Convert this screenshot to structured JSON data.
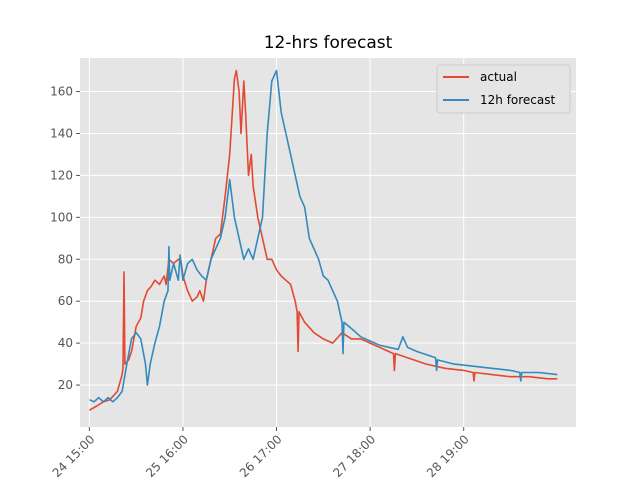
{
  "chart_data": {
    "type": "line",
    "title": "12-hrs forecast",
    "xlabel": "",
    "ylabel": "",
    "ylim": [
      0,
      176
    ],
    "yticks": [
      20,
      40,
      60,
      80,
      100,
      120,
      140,
      160
    ],
    "xlim": [
      -0.1,
      5.2
    ],
    "xtick_values": [
      0,
      1,
      2,
      3,
      4
    ],
    "xtick_labels": [
      "24 15:00",
      "25 16:00",
      "26 17:00",
      "27 18:00",
      "28 19:00"
    ],
    "grid": true,
    "legend_position": "top-right",
    "colors": {
      "actual": "#e24a33",
      "forecast": "#348abd",
      "background": "#e5e5e5",
      "grid": "#ffffff"
    },
    "series": [
      {
        "name": "actual",
        "color": "#e24a33",
        "points": [
          [
            0,
            8
          ],
          [
            0.08,
            10
          ],
          [
            0.15,
            12
          ],
          [
            0.22,
            13
          ],
          [
            0.3,
            17
          ],
          [
            0.35,
            25
          ],
          [
            0.36,
            28
          ],
          [
            0.37,
            74
          ],
          [
            0.38,
            30
          ],
          [
            0.42,
            32
          ],
          [
            0.45,
            36
          ],
          [
            0.5,
            48
          ],
          [
            0.55,
            52
          ],
          [
            0.58,
            60
          ],
          [
            0.62,
            65
          ],
          [
            0.66,
            67
          ],
          [
            0.7,
            70
          ],
          [
            0.75,
            68
          ],
          [
            0.8,
            72
          ],
          [
            0.82,
            68
          ],
          [
            0.85,
            80
          ],
          [
            0.9,
            78
          ],
          [
            0.95,
            80
          ],
          [
            0.98,
            79
          ],
          [
            1.0,
            72
          ],
          [
            1.05,
            65
          ],
          [
            1.1,
            60
          ],
          [
            1.15,
            62
          ],
          [
            1.18,
            65
          ],
          [
            1.22,
            60
          ],
          [
            1.25,
            70
          ],
          [
            1.3,
            80
          ],
          [
            1.35,
            90
          ],
          [
            1.4,
            92
          ],
          [
            1.45,
            110
          ],
          [
            1.5,
            130
          ],
          [
            1.55,
            166
          ],
          [
            1.57,
            170
          ],
          [
            1.6,
            160
          ],
          [
            1.62,
            140
          ],
          [
            1.65,
            165
          ],
          [
            1.67,
            150
          ],
          [
            1.7,
            120
          ],
          [
            1.73,
            130
          ],
          [
            1.75,
            115
          ],
          [
            1.8,
            100
          ],
          [
            1.85,
            90
          ],
          [
            1.9,
            80
          ],
          [
            1.95,
            80
          ],
          [
            2.0,
            75
          ],
          [
            2.05,
            72
          ],
          [
            2.1,
            70
          ],
          [
            2.15,
            68
          ],
          [
            2.2,
            60
          ],
          [
            2.22,
            55
          ],
          [
            2.23,
            36
          ],
          [
            2.24,
            55
          ],
          [
            2.3,
            50
          ],
          [
            2.4,
            45
          ],
          [
            2.5,
            42
          ],
          [
            2.6,
            40
          ],
          [
            2.7,
            45
          ],
          [
            2.8,
            42
          ],
          [
            2.9,
            42
          ],
          [
            3.0,
            40
          ],
          [
            3.1,
            38
          ],
          [
            3.2,
            36
          ],
          [
            3.25,
            35
          ],
          [
            3.26,
            27
          ],
          [
            3.27,
            35
          ],
          [
            3.4,
            33
          ],
          [
            3.6,
            30
          ],
          [
            3.8,
            28
          ],
          [
            4.0,
            27
          ],
          [
            4.1,
            26
          ],
          [
            4.11,
            22
          ],
          [
            4.12,
            26
          ],
          [
            4.3,
            25
          ],
          [
            4.5,
            24
          ],
          [
            4.7,
            24
          ],
          [
            4.9,
            23
          ],
          [
            5.0,
            23
          ]
        ]
      },
      {
        "name": "12h forecast",
        "color": "#348abd",
        "points": [
          [
            0,
            13
          ],
          [
            0.05,
            12
          ],
          [
            0.1,
            14
          ],
          [
            0.15,
            12
          ],
          [
            0.2,
            14
          ],
          [
            0.25,
            12
          ],
          [
            0.3,
            14
          ],
          [
            0.35,
            17
          ],
          [
            0.4,
            30
          ],
          [
            0.45,
            42
          ],
          [
            0.5,
            45
          ],
          [
            0.55,
            42
          ],
          [
            0.6,
            30
          ],
          [
            0.62,
            20
          ],
          [
            0.65,
            30
          ],
          [
            0.7,
            40
          ],
          [
            0.75,
            48
          ],
          [
            0.8,
            60
          ],
          [
            0.84,
            65
          ],
          [
            0.85,
            86
          ],
          [
            0.86,
            70
          ],
          [
            0.9,
            78
          ],
          [
            0.95,
            70
          ],
          [
            0.97,
            82
          ],
          [
            1.0,
            70
          ],
          [
            1.05,
            78
          ],
          [
            1.1,
            80
          ],
          [
            1.15,
            75
          ],
          [
            1.2,
            72
          ],
          [
            1.25,
            70
          ],
          [
            1.3,
            80
          ],
          [
            1.35,
            85
          ],
          [
            1.4,
            90
          ],
          [
            1.45,
            100
          ],
          [
            1.5,
            118
          ],
          [
            1.55,
            100
          ],
          [
            1.6,
            90
          ],
          [
            1.65,
            80
          ],
          [
            1.7,
            85
          ],
          [
            1.75,
            80
          ],
          [
            1.8,
            90
          ],
          [
            1.85,
            100
          ],
          [
            1.9,
            140
          ],
          [
            1.95,
            165
          ],
          [
            2.0,
            170
          ],
          [
            2.05,
            150
          ],
          [
            2.1,
            140
          ],
          [
            2.15,
            130
          ],
          [
            2.2,
            120
          ],
          [
            2.25,
            110
          ],
          [
            2.3,
            105
          ],
          [
            2.35,
            90
          ],
          [
            2.4,
            85
          ],
          [
            2.45,
            80
          ],
          [
            2.5,
            72
          ],
          [
            2.55,
            70
          ],
          [
            2.6,
            65
          ],
          [
            2.65,
            60
          ],
          [
            2.7,
            50
          ],
          [
            2.71,
            35
          ],
          [
            2.72,
            50
          ],
          [
            2.8,
            47
          ],
          [
            2.9,
            43
          ],
          [
            3.0,
            41
          ],
          [
            3.1,
            39
          ],
          [
            3.2,
            38
          ],
          [
            3.3,
            37
          ],
          [
            3.35,
            43
          ],
          [
            3.4,
            38
          ],
          [
            3.5,
            36
          ],
          [
            3.7,
            33
          ],
          [
            3.71,
            27
          ],
          [
            3.72,
            32
          ],
          [
            3.9,
            30
          ],
          [
            4.1,
            29
          ],
          [
            4.3,
            28
          ],
          [
            4.5,
            27
          ],
          [
            4.6,
            26
          ],
          [
            4.61,
            22
          ],
          [
            4.62,
            26
          ],
          [
            4.8,
            26
          ],
          [
            5.0,
            25
          ]
        ]
      }
    ]
  }
}
